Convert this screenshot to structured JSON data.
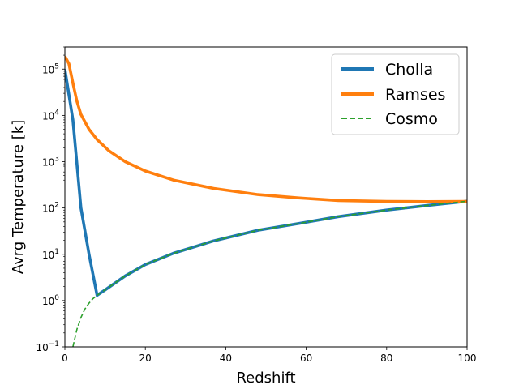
{
  "chart_data": {
    "type": "line",
    "xlabel": "Redshift",
    "ylabel": "Avrg Temperature [k]",
    "xlim": [
      0,
      100
    ],
    "ylim": [
      0.1,
      300000
    ],
    "yscale": "log",
    "grid": false,
    "legend_position": "top-right",
    "x_ticks": [
      "0",
      "20",
      "40",
      "60",
      "80",
      "100"
    ],
    "y_ticks": [
      {
        "value": 0.1,
        "base": "10",
        "exp": "−1"
      },
      {
        "value": 1,
        "base": "10",
        "exp": "0"
      },
      {
        "value": 10,
        "base": "10",
        "exp": "1"
      },
      {
        "value": 100,
        "base": "10",
        "exp": "2"
      },
      {
        "value": 1000,
        "base": "10",
        "exp": "3"
      },
      {
        "value": 10000,
        "base": "10",
        "exp": "4"
      },
      {
        "value": 100000,
        "base": "10",
        "exp": "5"
      }
    ],
    "series": [
      {
        "name": "Cholla",
        "color": "#1f77b4",
        "style": "solid",
        "points": [
          [
            0,
            100000
          ],
          [
            2,
            8000
          ],
          [
            4,
            100
          ],
          [
            6,
            10
          ],
          [
            8,
            1.3
          ],
          [
            10,
            1.7
          ],
          [
            15,
            3.4
          ],
          [
            20,
            6
          ],
          [
            27,
            10.5
          ],
          [
            37,
            19.5
          ],
          [
            48,
            33
          ],
          [
            58,
            46
          ],
          [
            68,
            65
          ],
          [
            80,
            90
          ],
          [
            90,
            113
          ],
          [
            100,
            140
          ]
        ]
      },
      {
        "name": "Ramses",
        "color": "#ff7f0e",
        "style": "solid",
        "points": [
          [
            0,
            190000
          ],
          [
            1,
            130000
          ],
          [
            2,
            50000
          ],
          [
            3,
            20000
          ],
          [
            4,
            10500
          ],
          [
            6,
            5000
          ],
          [
            8,
            3000
          ],
          [
            11,
            1700
          ],
          [
            15,
            1000
          ],
          [
            20,
            630
          ],
          [
            27,
            400
          ],
          [
            37,
            265
          ],
          [
            48,
            195
          ],
          [
            58,
            165
          ],
          [
            68,
            145
          ],
          [
            80,
            138
          ],
          [
            90,
            137
          ],
          [
            100,
            138
          ]
        ]
      },
      {
        "name": "Cosmo",
        "color": "#2ca02c",
        "style": "dashed",
        "points": [
          [
            2,
            0.1
          ],
          [
            3,
            0.24
          ],
          [
            4,
            0.43
          ],
          [
            5,
            0.66
          ],
          [
            6,
            0.88
          ],
          [
            7,
            1.1
          ],
          [
            8,
            1.3
          ],
          [
            10,
            1.7
          ],
          [
            15,
            3.4
          ],
          [
            20,
            6
          ],
          [
            27,
            10.5
          ],
          [
            37,
            19.5
          ],
          [
            48,
            33
          ],
          [
            58,
            46
          ],
          [
            68,
            65
          ],
          [
            80,
            90
          ],
          [
            90,
            113
          ],
          [
            100,
            140
          ]
        ]
      }
    ]
  }
}
